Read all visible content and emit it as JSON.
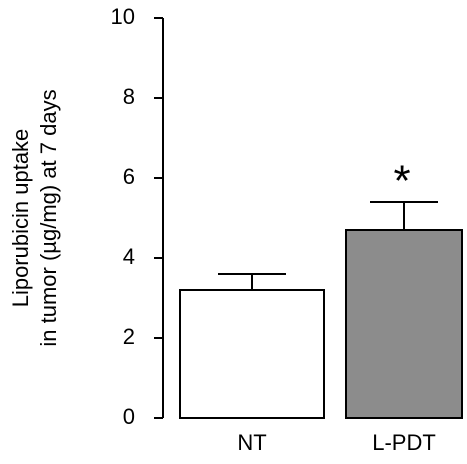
{
  "chart_data": {
    "type": "bar",
    "y_label": [
      "Liporubicin uptake",
      "in tumor (µg/mg) at 7 days"
    ],
    "categories": [
      "NT",
      "L-PDT"
    ],
    "values": [
      3.2,
      4.7
    ],
    "errors": [
      0.4,
      0.7
    ],
    "colors": [
      "#ffffff",
      "#8c8c8c"
    ],
    "significance_marker": "*",
    "ylim": [
      0,
      10
    ],
    "yticks": [
      0,
      2,
      4,
      6,
      8,
      10
    ],
    "grid": false
  }
}
